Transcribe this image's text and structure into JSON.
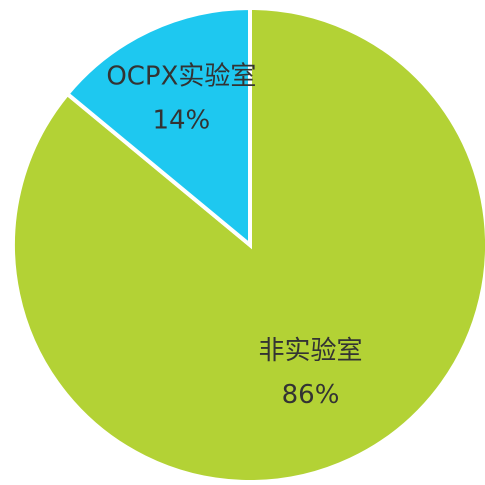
{
  "chart_data": {
    "type": "pie",
    "categories": [
      "非实验室",
      "OCPX实验室"
    ],
    "values": [
      86,
      14
    ],
    "value_labels": [
      "86%",
      "14%"
    ],
    "colors": [
      "#b3d235",
      "#1ec8f0"
    ],
    "start_angle": "top",
    "direction": "clockwise"
  }
}
